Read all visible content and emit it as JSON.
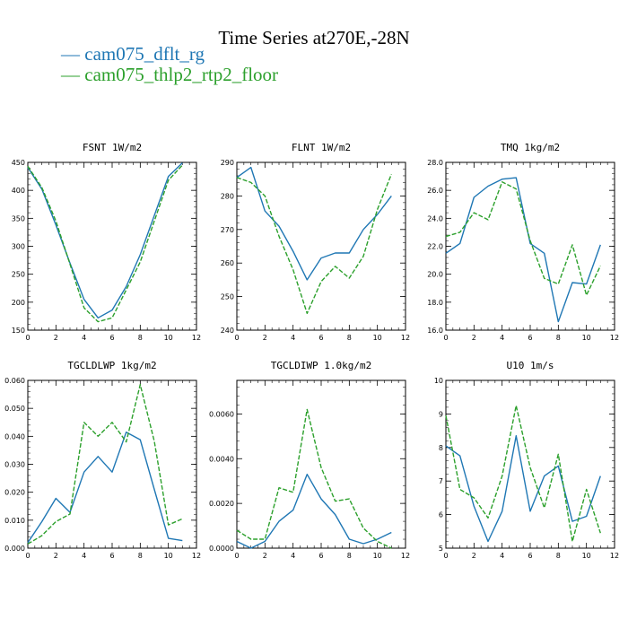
{
  "title": "Time Series at270E,-28N",
  "legend": [
    {
      "symbol": "—",
      "label": "cam075_dflt_rg",
      "color": "#1f77b4"
    },
    {
      "symbol": "—",
      "label": "cam075_thlp2_rtp2_floor",
      "color": "#2ca02c"
    }
  ],
  "chart_data": [
    {
      "type": "line",
      "title": "FSNT   1W/m2",
      "xlim": [
        0,
        12
      ],
      "ylim": [
        150,
        450
      ],
      "xticks": [
        "0",
        "2",
        "4",
        "6",
        "8",
        "10",
        "12"
      ],
      "yticks": [
        "150",
        "200",
        "250",
        "300",
        "350",
        "400",
        "450"
      ],
      "x": [
        0,
        1,
        2,
        3,
        4,
        5,
        6,
        7,
        8,
        9,
        10,
        11
      ],
      "series": [
        {
          "name": "cam075_dflt_rg",
          "values": [
            441,
            402,
            338,
            270,
            205,
            172,
            186,
            228,
            285,
            355,
            425,
            449
          ]
        },
        {
          "name": "cam075_thlp2_rtp2_floor",
          "values": [
            443,
            405,
            345,
            268,
            190,
            165,
            172,
            222,
            272,
            345,
            418,
            445
          ]
        }
      ]
    },
    {
      "type": "line",
      "title": "FLNT   1W/m2",
      "xlim": [
        0,
        12
      ],
      "ylim": [
        240,
        290
      ],
      "xticks": [
        "0",
        "2",
        "4",
        "6",
        "8",
        "10",
        "12"
      ],
      "yticks": [
        "240",
        "250",
        "260",
        "270",
        "280",
        "290"
      ],
      "x": [
        0,
        1,
        2,
        3,
        4,
        5,
        6,
        7,
        8,
        9,
        10,
        11
      ],
      "series": [
        {
          "name": "cam075_dflt_rg",
          "values": [
            285.5,
            288.5,
            275.5,
            271,
            263.5,
            255,
            261.5,
            263,
            263,
            270,
            274.5,
            280
          ]
        },
        {
          "name": "cam075_thlp2_rtp2_floor",
          "values": [
            285.5,
            284,
            280,
            268,
            258,
            245,
            254.5,
            259,
            255.5,
            262,
            276,
            286.5
          ]
        }
      ]
    },
    {
      "type": "line",
      "title": "TMQ   1kg/m2",
      "xlim": [
        0,
        12
      ],
      "ylim": [
        16,
        28
      ],
      "xticks": [
        "0",
        "2",
        "4",
        "6",
        "8",
        "10",
        "12"
      ],
      "yticks": [
        "16.0",
        "18.0",
        "20.0",
        "22.0",
        "24.0",
        "26.0",
        "28.0"
      ],
      "x": [
        0,
        1,
        2,
        3,
        4,
        5,
        6,
        7,
        8,
        9,
        10,
        11
      ],
      "series": [
        {
          "name": "cam075_dflt_rg",
          "values": [
            21.5,
            22.2,
            25.5,
            26.3,
            26.8,
            26.9,
            22.2,
            21.5,
            16.6,
            19.4,
            19.3,
            22.1
          ]
        },
        {
          "name": "cam075_thlp2_rtp2_floor",
          "values": [
            22.7,
            23.0,
            24.4,
            23.9,
            26.6,
            26.1,
            22.4,
            19.7,
            19.3,
            22.1,
            18.5,
            20.6
          ]
        }
      ]
    },
    {
      "type": "line",
      "title": "TGCLDLWP   1kg/m2",
      "xlim": [
        0,
        12
      ],
      "ylim": [
        0,
        0.06
      ],
      "xticks": [
        "0",
        "2",
        "4",
        "6",
        "8",
        "10",
        "12"
      ],
      "yticks": [
        "0.000",
        "0.010",
        "0.020",
        "0.030",
        "0.040",
        "0.050",
        "0.060"
      ],
      "x": [
        0,
        1,
        2,
        3,
        4,
        5,
        6,
        7,
        8,
        9,
        10,
        11
      ],
      "series": [
        {
          "name": "cam075_dflt_rg",
          "values": [
            0.002,
            0.0095,
            0.0178,
            0.0128,
            0.0272,
            0.0328,
            0.0272,
            0.0415,
            0.0388,
            0.021,
            0.0035,
            0.0027
          ]
        },
        {
          "name": "cam075_thlp2_rtp2_floor",
          "values": [
            0.0015,
            0.0045,
            0.0095,
            0.0122,
            0.045,
            0.04,
            0.045,
            0.038,
            0.0585,
            0.0382,
            0.0083,
            0.0105
          ]
        }
      ]
    },
    {
      "type": "line",
      "title": "TGCLDIWP   1.0kg/m2",
      "xlim": [
        0,
        12
      ],
      "ylim": [
        0,
        0.0075
      ],
      "xticks": [
        "0",
        "2",
        "4",
        "6",
        "8",
        "10",
        "12"
      ],
      "yticks": [
        "0.0000",
        "0.0020",
        "0.0040",
        "0.0060"
      ],
      "ytick_values": [
        0,
        0.002,
        0.004,
        0.006
      ],
      "x": [
        0,
        1,
        2,
        3,
        4,
        5,
        6,
        7,
        8,
        9,
        10,
        11
      ],
      "series": [
        {
          "name": "cam075_dflt_rg",
          "values": [
            0.0003,
            0.0,
            0.0003,
            0.0012,
            0.0017,
            0.0033,
            0.0022,
            0.0015,
            0.0004,
            0.0002,
            0.0004,
            0.0007
          ]
        },
        {
          "name": "cam075_thlp2_rtp2_floor",
          "values": [
            0.0008,
            0.0004,
            0.0004,
            0.0027,
            0.0025,
            0.0062,
            0.0036,
            0.0021,
            0.0022,
            0.0009,
            0.0003,
            0.0
          ]
        }
      ]
    },
    {
      "type": "line",
      "title": "U10   1m/s",
      "xlim": [
        0,
        12
      ],
      "ylim": [
        5,
        10
      ],
      "xticks": [
        "0",
        "2",
        "4",
        "6",
        "8",
        "10",
        "12"
      ],
      "yticks": [
        "5",
        "6",
        "7",
        "8",
        "9",
        "10"
      ],
      "x": [
        0,
        1,
        2,
        3,
        4,
        5,
        6,
        7,
        8,
        9,
        10,
        11
      ],
      "series": [
        {
          "name": "cam075_dflt_rg",
          "values": [
            8.05,
            7.75,
            6.25,
            5.2,
            6.1,
            8.35,
            6.1,
            7.15,
            7.45,
            5.8,
            5.95,
            7.15
          ]
        },
        {
          "name": "cam075_thlp2_rtp2_floor",
          "values": [
            8.95,
            6.75,
            6.5,
            5.9,
            7.15,
            9.25,
            7.4,
            6.2,
            7.8,
            5.2,
            6.75,
            5.45
          ]
        }
      ]
    }
  ]
}
